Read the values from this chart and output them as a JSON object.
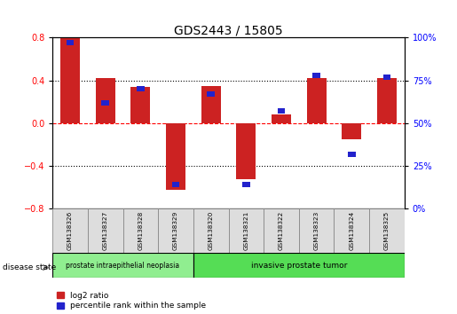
{
  "title": "GDS2443 / 15805",
  "samples": [
    "GSM138326",
    "GSM138327",
    "GSM138328",
    "GSM138329",
    "GSM138320",
    "GSM138321",
    "GSM138322",
    "GSM138323",
    "GSM138324",
    "GSM138325"
  ],
  "log2_ratio": [
    0.8,
    0.42,
    0.34,
    -0.62,
    0.35,
    -0.52,
    0.08,
    0.42,
    -0.15,
    0.42
  ],
  "percentile_rank": [
    97,
    62,
    70,
    14,
    67,
    14,
    57,
    78,
    32,
    77
  ],
  "disease_groups": [
    {
      "label": "prostate intraepithelial neoplasia",
      "n_samples": 4,
      "color": "#90EE90"
    },
    {
      "label": "invasive prostate tumor",
      "n_samples": 6,
      "color": "#55DD55"
    }
  ],
  "ylim": [
    -0.8,
    0.8
  ],
  "bar_color": "#CC2222",
  "dot_color": "#2222CC",
  "title_fontsize": 10,
  "tick_fontsize": 7,
  "background_color": "#ffffff",
  "y2_ticks": [
    0,
    25,
    50,
    75,
    100
  ],
  "y2_ticklabels": [
    "0%",
    "25%",
    "50%",
    "75%",
    "100%"
  ]
}
